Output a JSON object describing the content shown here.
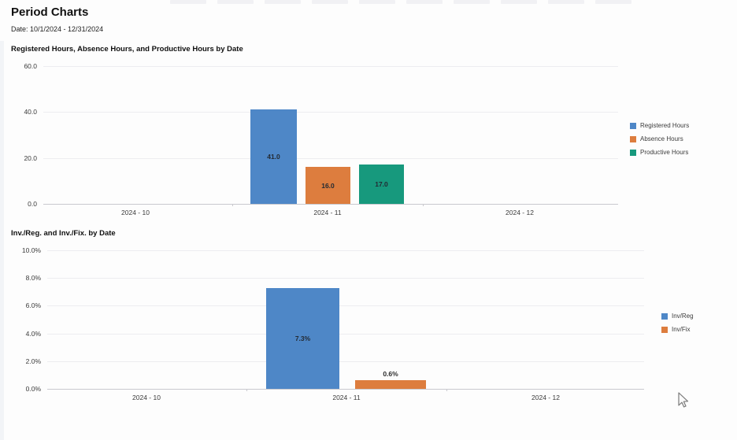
{
  "page": {
    "title": "Period Charts",
    "date_label": "Date: 10/1/2024 - 12/31/2024",
    "background": "#fdfdfd"
  },
  "cursor": {
    "type": "arrow-pointer"
  },
  "chart_data": [
    {
      "type": "bar",
      "title": "Registered Hours, Absence Hours, and Productive Hours by Date",
      "categories": [
        "2024 - 10",
        "2024 - 11",
        "2024 - 12"
      ],
      "series": [
        {
          "name": "Registered Hours",
          "color": "#4e87c7",
          "values": [
            null,
            41.0,
            null
          ],
          "label": "41.0"
        },
        {
          "name": "Absence Hours",
          "color": "#dd7d3e",
          "values": [
            null,
            16.0,
            null
          ],
          "label": "16.0"
        },
        {
          "name": "Productive Hours",
          "color": "#17997d",
          "values": [
            null,
            17.0,
            null
          ],
          "label": "17.0"
        }
      ],
      "ylim": [
        0,
        60
      ],
      "y_ticks": [
        "60.0",
        "40.0",
        "20.0",
        "0.0"
      ],
      "xlabel": "",
      "ylabel": "",
      "grid": true,
      "legend_position": "right"
    },
    {
      "type": "bar",
      "title": "Inv./Reg. and Inv./Fix. by Date",
      "categories": [
        "2024 - 10",
        "2024 - 11",
        "2024 - 12"
      ],
      "series": [
        {
          "name": "Inv/Reg",
          "color": "#4e87c7",
          "values": [
            null,
            7.3,
            null
          ],
          "label": "7.3%"
        },
        {
          "name": "Inv/Fix",
          "color": "#dd7d3e",
          "values": [
            null,
            0.6,
            null
          ],
          "label": "0.6%"
        }
      ],
      "ylim": [
        0,
        10
      ],
      "y_ticks": [
        "10.0%",
        "8.0%",
        "6.0%",
        "4.0%",
        "2.0%",
        "0.0%"
      ],
      "xlabel": "",
      "ylabel": "",
      "grid": true,
      "legend_position": "right"
    }
  ]
}
